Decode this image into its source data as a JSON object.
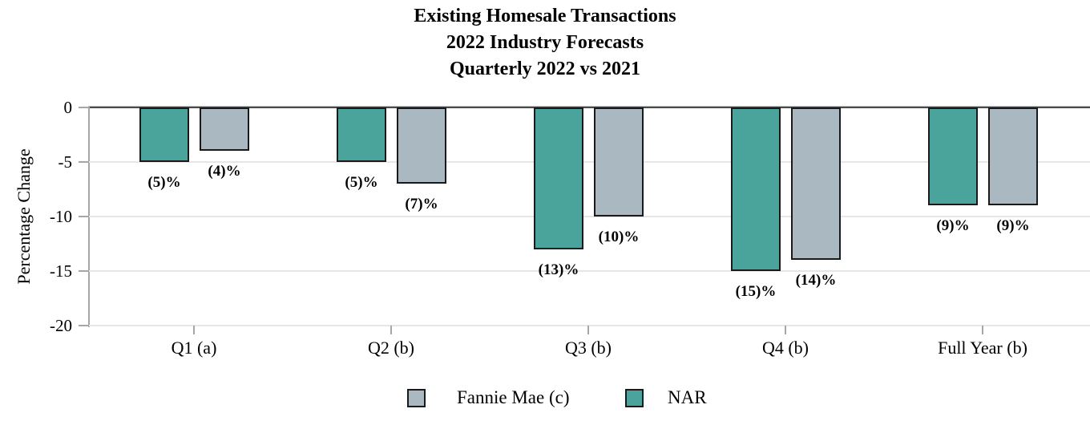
{
  "chart_data": {
    "type": "bar",
    "title_lines": [
      "Existing Homesale Transactions",
      "2022 Industry Forecasts",
      "Quarterly 2022 vs 2021"
    ],
    "ylabel": "Percentage Change",
    "xlabel": "",
    "categories": [
      "Q1 (a)",
      "Q2 (b)",
      "Q3 (b)",
      "Q4 (b)",
      "Full Year (b)"
    ],
    "series": [
      {
        "name": "NAR",
        "color": "#4AA49C",
        "values": [
          -5,
          -5,
          -13,
          -15,
          -9
        ],
        "value_labels": [
          "(5)%",
          "(5)%",
          "(13)%",
          "(15)%",
          "(9)%"
        ]
      },
      {
        "name": "Fannie Mae (c)",
        "color": "#A9B8C1",
        "values": [
          -4,
          -7,
          -10,
          -14,
          -9
        ],
        "value_labels": [
          "(4)%",
          "(7)%",
          "(10)%",
          "(14)%",
          "(9)%"
        ]
      }
    ],
    "ylim": [
      -20,
      0
    ],
    "yticks": [
      0,
      -5,
      -10,
      -15,
      -20
    ],
    "ytick_labels": [
      "0",
      "-5",
      "-10",
      "-15",
      "-20"
    ],
    "grid": true,
    "legend": {
      "position": "bottom",
      "entries": [
        {
          "label": "Fannie Mae (c)",
          "color": "#A9B8C1"
        },
        {
          "label": "NAR",
          "color": "#4AA49C"
        }
      ]
    },
    "colors": {
      "bar_border": "#1A1A1A",
      "zero_line": "#4A4A4A",
      "axis_line": "#A6A6A6",
      "gridline": "#E6E6E6",
      "text": "#000000"
    }
  }
}
